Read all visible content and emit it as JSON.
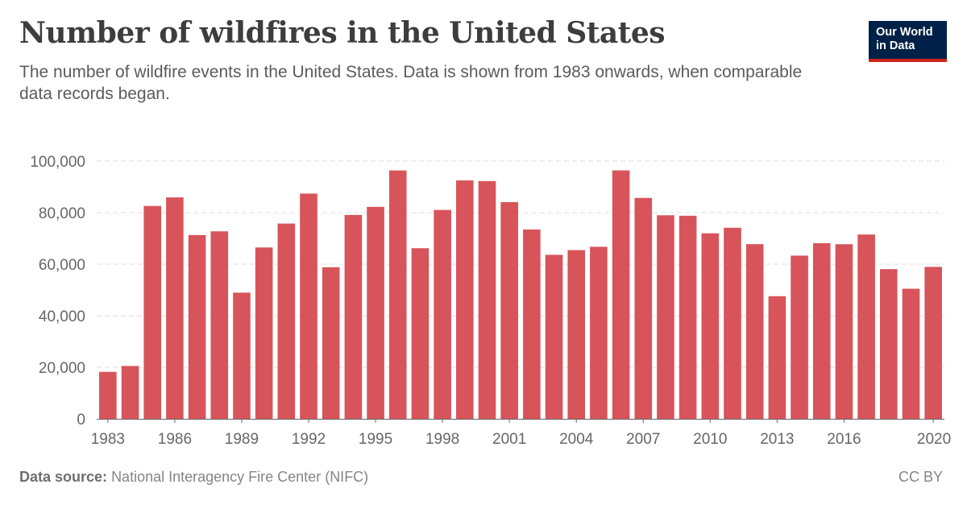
{
  "header": {
    "title": "Number of wildfires in the United States",
    "subtitle": "The number of wildfire events in the United States. Data is shown from 1983 onwards, when comparable data records began."
  },
  "logo": {
    "line1": "Our World",
    "line2": "in Data"
  },
  "footer": {
    "source_label": "Data source:",
    "source_text": "National Interagency Fire Center (NIFC)",
    "license": "CC BY"
  },
  "colors": {
    "bar": "#d7545a",
    "grid": "#dddddd",
    "axis": "#666666",
    "logo_bg": "#002147",
    "logo_accent": "#ce261e"
  },
  "chart_data": {
    "type": "bar",
    "title": "Number of wildfires in the United States",
    "xlabel": "",
    "ylabel": "",
    "ylim": [
      0,
      100000
    ],
    "yticks": [
      0,
      20000,
      40000,
      60000,
      80000,
      100000
    ],
    "ytick_labels": [
      "0",
      "20,000",
      "40,000",
      "60,000",
      "80,000",
      "100,000"
    ],
    "xtick_labels": [
      "1983",
      "1986",
      "1989",
      "1992",
      "1995",
      "1998",
      "2001",
      "2004",
      "2007",
      "2010",
      "2013",
      "2016",
      "2020"
    ],
    "grid": true,
    "categories": [
      "1983",
      "1984",
      "1985",
      "1986",
      "1987",
      "1988",
      "1989",
      "1990",
      "1991",
      "1992",
      "1993",
      "1994",
      "1995",
      "1996",
      "1997",
      "1998",
      "1999",
      "2000",
      "2001",
      "2002",
      "2003",
      "2004",
      "2005",
      "2006",
      "2007",
      "2008",
      "2009",
      "2010",
      "2011",
      "2012",
      "2013",
      "2014",
      "2015",
      "2016",
      "2017",
      "2018",
      "2019",
      "2020"
    ],
    "values": [
      18229,
      20493,
      82591,
      85907,
      71300,
      72750,
      48949,
      66481,
      75754,
      87394,
      58810,
      79107,
      82234,
      96363,
      66196,
      81043,
      92487,
      92250,
      84079,
      73457,
      63629,
      65461,
      66753,
      96385,
      85705,
      78979,
      78792,
      71971,
      74126,
      67774,
      47579,
      63312,
      68151,
      67743,
      71499,
      58083,
      50477,
      58950
    ]
  }
}
